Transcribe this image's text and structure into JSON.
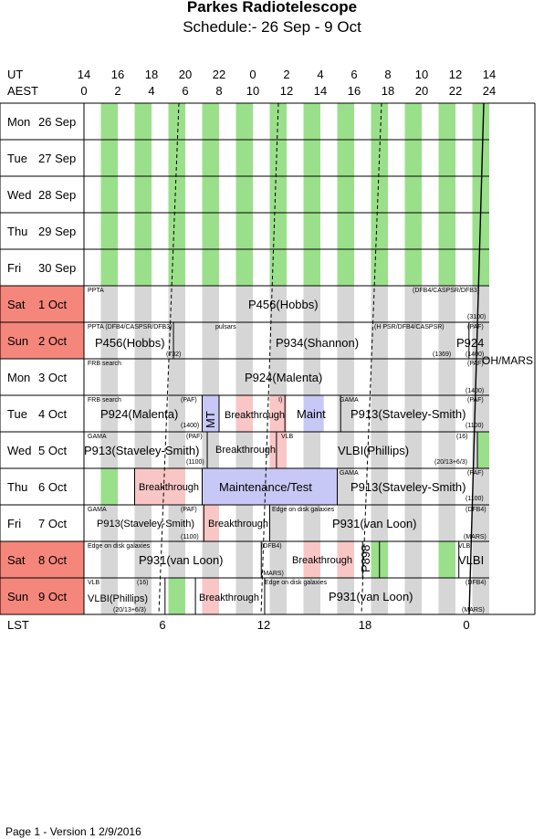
{
  "header": {
    "title": "Parkes Radiotelescope",
    "subtitle": "Schedule:- 26 Sep - 9  Oct"
  },
  "axis": {
    "ut_label": "UT",
    "aest_label": "AEST",
    "ut_ticks": [
      "14",
      "16",
      "18",
      "20",
      "22",
      "0",
      "2",
      "4",
      "6",
      "8",
      "10",
      "12",
      "14"
    ],
    "aest_ticks": [
      "0",
      "2",
      "4",
      "6",
      "8",
      "10",
      "12",
      "14",
      "16",
      "18",
      "20",
      "22",
      "24"
    ],
    "lst_label": "LST",
    "lst_ticks": [
      "6",
      "12",
      "18",
      "0"
    ]
  },
  "days": [
    {
      "dow": "Mon",
      "date": "26 Sep",
      "weekend": false
    },
    {
      "dow": "Tue",
      "date": "27 Sep",
      "weekend": false
    },
    {
      "dow": "Wed",
      "date": "28 Sep",
      "weekend": false
    },
    {
      "dow": "Thu",
      "date": "29 Sep",
      "weekend": false
    },
    {
      "dow": "Fri",
      "date": "30 Sep",
      "weekend": false
    },
    {
      "dow": "Sat",
      "date": "1  Oct",
      "weekend": true
    },
    {
      "dow": "Sun",
      "date": "2  Oct",
      "weekend": true
    },
    {
      "dow": "Mon",
      "date": "3  Oct",
      "weekend": false
    },
    {
      "dow": "Tue",
      "date": "4  Oct",
      "weekend": false
    },
    {
      "dow": "Wed",
      "date": "5  Oct",
      "weekend": false
    },
    {
      "dow": "Thu",
      "date": "6  Oct",
      "weekend": false
    },
    {
      "dow": "Fri",
      "date": "7  Oct",
      "weekend": false
    },
    {
      "dow": "Sat",
      "date": "8  Oct",
      "weekend": true
    },
    {
      "dow": "Sun",
      "date": "9  Oct",
      "weekend": true
    }
  ],
  "side_note": "OH/MARS",
  "labels": {
    "sat1_small_left": "PPTA",
    "sat1_small_right": "(DFB4/CASPSR/DFB3)",
    "sat1_main": "P456(Hobbs)",
    "sat1_code": "(3100)",
    "sun2_small_left": "PPTA (DFB4/CASPSR/DFB3)",
    "sun2_small_pulsars": "pulsars",
    "sun2_small_right": "(H PSR/DFB4/CASPSR)",
    "sun2_small_paf": "(PAF)",
    "sun2_main_a": "P456(Hobbs)",
    "sun2_main_b": "P934(Shannon)",
    "sun2_main_c": "P924",
    "sun2_code_a": "(732)",
    "sun2_code_b": "(1369)",
    "sun2_code_c": "(1400)",
    "mon3_small": "FRB search",
    "mon3_paf": "(PAF)",
    "mon3_main": "P924(Malenta)",
    "mon3_code": "(1400)",
    "tue4_small": "FRB search",
    "tue4_paf": "(PAF)",
    "tue4_main": "P924(Malenta)",
    "tue4_code": "(1400)",
    "tue4_mt": "MT",
    "tue4_bt": "Breakthrough",
    "tue4_maint": "Maint",
    "tue4_gama": "GAMA",
    "tue4_paf2": "(PAF)",
    "tue4_main2": "P913(Staveley-Smith)",
    "tue4_code2": "(1100)",
    "tue4_i": "I)",
    "wed5_gama": "GAMA",
    "wed5_paf": "(PAF)",
    "wed5_main": "P913(Staveley-Smith)",
    "wed5_code": "(1100)",
    "wed5_bt": "Breakthrough",
    "wed5_vlb": "VLB",
    "wed5_16": "(16)",
    "wed5_vlbi": "VLBI(Phillips)",
    "wed5_vcode": "(20/13+6/3)",
    "thu6_bt": "Breakthrough",
    "thu6_mt": "Maintenance/Test",
    "thu6_gama": "GAMA",
    "thu6_paf": "(PAF)",
    "thu6_main": "P913(Staveley-Smith)",
    "thu6_code": "(1100)",
    "fri7_gama": "GAMA",
    "fri7_paf": "(PAF)",
    "fri7_main": "P913(Staveley-Smith)",
    "fri7_code": "(1100)",
    "fri7_bt": "Breakthrough",
    "fri7_edge": "Edge on disk galaxies",
    "fri7_dfb4": "(DFB4)",
    "fri7_main2": "P931(van Loon)",
    "fri7_mars": "(MARS)",
    "sat8_edge": "Edge on disk galaxies",
    "sat8_dfb4": "(DFB4)",
    "sat8_main": "P931(van Loon)",
    "sat8_mars": "(MARS)",
    "sat8_bt": "Breakthrough",
    "sat8_p898": "P898",
    "sat8_vlb": "VLB",
    "sat8_vlbi": "VLBI",
    "sun9_vlb": "VLB",
    "sun9_16": "(16)",
    "sun9_vlbi": "VLBI(Phillips)",
    "sun9_vcode": "(20/13+6/3)",
    "sun9_bt": "Breakthrough",
    "sun9_edge": "Edge on disk galaxies",
    "sun9_dfb4": "(DFB4)",
    "sun9_main": "P931(van Loon)",
    "sun9_mars": "(MARS)"
  },
  "footer": {
    "text": "Page 1 - Version 1  2/9/2016"
  },
  "colors": {
    "weekend": "#f4867c",
    "green": "#9ae08a",
    "grey": "#d6d6d6",
    "pink": "#f9c6c6",
    "blue": "#c8c8f6"
  }
}
